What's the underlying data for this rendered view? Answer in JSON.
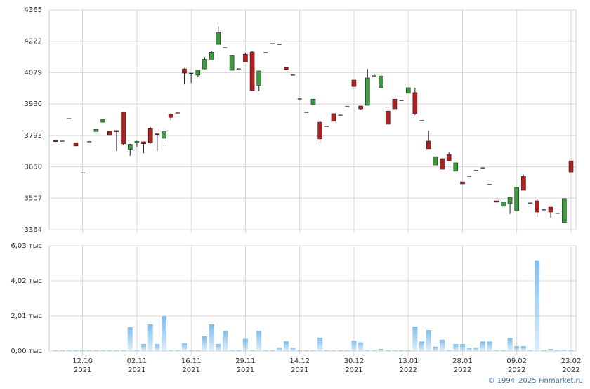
{
  "chart_data": [
    {
      "type": "candlestick",
      "categories": [
        null,
        null,
        null,
        null,
        [
          "12.10",
          "2021"
        ],
        null,
        null,
        null,
        null,
        null,
        null,
        null,
        [
          "02.11",
          "2021"
        ],
        null,
        null,
        null,
        null,
        null,
        null,
        null,
        [
          "16.11",
          "2021"
        ],
        null,
        null,
        null,
        null,
        null,
        null,
        null,
        [
          "29.11",
          "2021"
        ],
        null,
        null,
        null,
        null,
        null,
        null,
        null,
        [
          "14.12",
          "2021"
        ],
        null,
        null,
        null,
        null,
        null,
        null,
        null,
        [
          "30.12",
          "2021"
        ],
        null,
        null,
        null,
        null,
        null,
        null,
        null,
        [
          "13.01",
          "2022"
        ],
        null,
        null,
        null,
        null,
        null,
        null,
        null,
        [
          "28.01",
          "2022"
        ],
        null,
        null,
        null,
        null,
        null,
        null,
        null,
        [
          "09.02",
          "2022"
        ],
        null,
        null,
        null,
        null,
        null,
        null,
        null,
        [
          "23.02",
          "2022"
        ]
      ],
      "open": [
        3770,
        3767,
        3869,
        3760,
        3622,
        3764,
        3811,
        3853,
        3812,
        3815,
        3898,
        3730,
        3760,
        3764,
        3825,
        3800,
        3780,
        3890,
        3895,
        4096,
        4076,
        4068,
        4096,
        4140,
        4208,
        4192,
        4090,
        4096,
        4163,
        4173,
        4020,
        4170,
        4211,
        4208,
        4103,
        4068,
        3959,
        3898,
        3933,
        3853,
        3834,
        3892,
        3885,
        3924,
        4045,
        3927,
        3930,
        4064,
        4010,
        3904,
        3958,
        3952,
        3985,
        3988,
        3860,
        3767,
        3658,
        3687,
        3706,
        3630,
        3581,
        3607,
        3633,
        3645,
        3569,
        3495,
        3470,
        3482,
        3450,
        3607,
        3485,
        3495,
        3454,
        3466,
        3438,
        3396,
        3677
      ],
      "high": [
        3772,
        3767,
        3869,
        3760,
        3622,
        3764,
        3822,
        3866,
        3812,
        3817,
        3900,
        3755,
        3768,
        3764,
        3830,
        3802,
        3822,
        3893,
        3895,
        4100,
        4076,
        4090,
        4150,
        4177,
        4290,
        4192,
        4157,
        4096,
        4170,
        4178,
        4087,
        4170,
        4211,
        4208,
        4103,
        4068,
        3959,
        3898,
        3958,
        3860,
        3834,
        3892,
        3885,
        3924,
        4045,
        3927,
        4096,
        4070,
        4070,
        3904,
        3958,
        3952,
        4010,
        4010,
        3860,
        3815,
        3696,
        3687,
        3716,
        3668,
        3581,
        3607,
        3633,
        3645,
        3569,
        3495,
        3491,
        3511,
        3556,
        3613,
        3485,
        3505,
        3454,
        3466,
        3438,
        3505,
        3677
      ],
      "low": [
        3763,
        3767,
        3869,
        3745,
        3622,
        3764,
        3811,
        3853,
        3796,
        3722,
        3750,
        3700,
        3740,
        3712,
        3755,
        3722,
        3755,
        3862,
        3895,
        4025,
        4032,
        4060,
        4094,
        4140,
        4208,
        4192,
        4090,
        4096,
        4128,
        3997,
        3995,
        4170,
        4211,
        4208,
        4094,
        4068,
        3959,
        3898,
        3933,
        3760,
        3834,
        3857,
        3885,
        3924,
        4016,
        3910,
        3930,
        4058,
        4010,
        3844,
        3914,
        3952,
        3985,
        3885,
        3860,
        3732,
        3658,
        3639,
        3677,
        3630,
        3572,
        3607,
        3633,
        3645,
        3569,
        3489,
        3470,
        3435,
        3450,
        3543,
        3485,
        3422,
        3454,
        3418,
        3438,
        3396,
        3626
      ],
      "close": [
        3765,
        3767,
        3869,
        3745,
        3622,
        3764,
        3820,
        3866,
        3796,
        3810,
        3755,
        3752,
        3765,
        3755,
        3760,
        3798,
        3810,
        3875,
        3895,
        4077,
        4076,
        4090,
        4140,
        4172,
        4262,
        4192,
        4157,
        4096,
        4128,
        3997,
        4087,
        4170,
        4211,
        4208,
        4094,
        4068,
        3959,
        3898,
        3958,
        3777,
        3834,
        3857,
        3885,
        3924,
        4016,
        3914,
        4055,
        4064,
        4064,
        3844,
        3914,
        3952,
        4010,
        3892,
        3860,
        3732,
        3696,
        3639,
        3677,
        3668,
        3572,
        3607,
        3633,
        3645,
        3569,
        3489,
        3491,
        3511,
        3556,
        3543,
        3485,
        3444,
        3454,
        3444,
        3438,
        3505,
        3626
      ],
      "up_color": "#3c9a3c",
      "down_color": "#b01e1e",
      "ylim": [
        3364,
        4365
      ],
      "yticks": [
        3364,
        3507,
        3650,
        3793,
        3936,
        4079,
        4222,
        4365
      ],
      "grid": true
    },
    {
      "type": "bar",
      "values": [
        0.05,
        0.05,
        0.05,
        0.05,
        0.05,
        0.05,
        0.05,
        0.05,
        0.05,
        0.05,
        0.05,
        1.37,
        0.05,
        0.4,
        1.53,
        0.4,
        2.0,
        0.05,
        0.05,
        0.45,
        0.05,
        0.05,
        0.85,
        1.53,
        0.4,
        1.17,
        0.05,
        0.05,
        0.7,
        0.05,
        1.17,
        0.05,
        0.05,
        0.2,
        0.56,
        0.2,
        0.05,
        0.05,
        0.05,
        0.77,
        0.05,
        0.05,
        0.05,
        0.05,
        0.6,
        0.5,
        0.05,
        0.05,
        0.12,
        0.05,
        0.05,
        0.05,
        0.05,
        1.41,
        0.55,
        1.2,
        0.25,
        0.65,
        0.05,
        0.4,
        0.4,
        0.2,
        0.2,
        0.55,
        0.55,
        0.05,
        0.05,
        0.75,
        0.28,
        0.28,
        0.05,
        5.2,
        0.05,
        0.12,
        0.05,
        0.08,
        0.05
      ],
      "color": "#7fbdec",
      "ylim": [
        0,
        6.03
      ],
      "yticks": [
        {
          "value": 0,
          "label": "0,00 тыс"
        },
        {
          "value": 2.01,
          "label": "2,01 тыс"
        },
        {
          "value": 4.02,
          "label": "4,02 тыс"
        },
        {
          "value": 6.03,
          "label": "6,03 тыс"
        }
      ],
      "grid": true
    }
  ],
  "footer": "© 1994–2025 Finmarket.ru"
}
